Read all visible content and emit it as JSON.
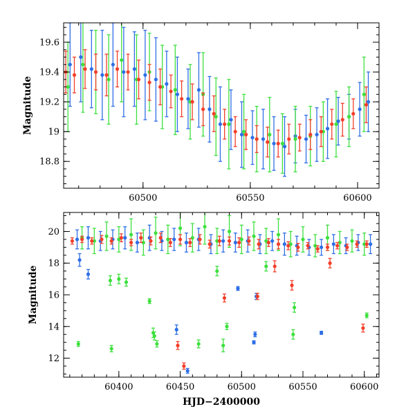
{
  "chart_data": [
    {
      "type": "scatter",
      "panel": "top",
      "ylabel": "Magnitude",
      "xlim": [
        60463,
        60610
      ],
      "ylim": [
        19.73,
        18.62
      ],
      "y_inverted": true,
      "x_ticks": [
        60500,
        60550,
        60600
      ],
      "x_tick_labels": [
        "60500",
        "60550",
        "60600"
      ],
      "y_ticks": [
        18.8,
        19.0,
        19.2,
        19.4,
        19.6
      ],
      "y_tick_labels": [
        "18.8",
        "19",
        "19.2",
        "19.4",
        "19.6"
      ],
      "grid": false,
      "legend": "none",
      "series": [
        {
          "color": "#2e6ee6",
          "x": [
            60466,
            60471,
            60476,
            60481,
            60486,
            60491,
            60496,
            60501,
            60506,
            60511,
            60516,
            60521,
            60526,
            60531,
            60536,
            60541,
            60546,
            60551,
            60556,
            60561,
            60566,
            60571,
            60576,
            60581,
            60586,
            60591,
            60596,
            60601,
            60605
          ],
          "y": [
            19.45,
            19.5,
            19.42,
            19.38,
            19.45,
            19.4,
            19.42,
            19.38,
            19.35,
            19.32,
            19.25,
            19.22,
            19.28,
            19.15,
            19.05,
            19.08,
            18.98,
            18.96,
            18.95,
            18.92,
            18.9,
            18.97,
            18.95,
            18.98,
            19.02,
            19.07,
            19.1,
            19.15,
            19.2
          ],
          "err": [
            0.28,
            0.3,
            0.26,
            0.3,
            0.28,
            0.3,
            0.25,
            0.3,
            0.28,
            0.22,
            0.25,
            0.2,
            0.25,
            0.22,
            0.25,
            0.2,
            0.22,
            0.18,
            0.2,
            0.18,
            0.2,
            0.18,
            0.16,
            0.18,
            0.2,
            0.16,
            0.15,
            0.18,
            0.2
          ]
        },
        {
          "color": "#3ee03e",
          "x": [
            60465,
            60472,
            60478,
            60484,
            60490,
            60497,
            60503,
            60509,
            60515,
            60522,
            60528,
            60534,
            60540,
            60547,
            60553,
            60559,
            60565,
            60571,
            60578,
            60584,
            60590,
            60596,
            60603
          ],
          "y": [
            19.3,
            19.45,
            19.4,
            19.35,
            19.48,
            19.35,
            19.4,
            19.3,
            19.28,
            19.2,
            19.25,
            19.1,
            19.05,
            19.0,
            18.95,
            18.98,
            18.92,
            18.95,
            18.97,
            19.0,
            19.05,
            19.1,
            19.25
          ],
          "err": [
            0.3,
            0.32,
            0.28,
            0.3,
            0.28,
            0.3,
            0.26,
            0.28,
            0.3,
            0.25,
            0.28,
            0.26,
            0.3,
            0.25,
            0.22,
            0.25,
            0.2,
            0.22,
            0.2,
            0.2,
            0.22,
            0.2,
            0.25
          ]
        },
        {
          "color": "#f23f2a",
          "x": [
            60464,
            60468,
            60473,
            60478,
            60483,
            60488,
            60493,
            60498,
            60503,
            60508,
            60513,
            60518,
            60523,
            60528,
            60533,
            60538,
            60543,
            60548,
            60553,
            60558,
            60563,
            60568,
            60573,
            60578,
            60583,
            60588,
            60593,
            60598,
            60604
          ],
          "y": [
            19.4,
            19.38,
            19.42,
            19.4,
            19.38,
            19.42,
            19.4,
            19.35,
            19.33,
            19.3,
            19.27,
            19.22,
            19.2,
            19.15,
            19.12,
            19.05,
            19.0,
            18.98,
            18.95,
            18.93,
            18.92,
            18.95,
            18.96,
            18.98,
            19.0,
            19.05,
            19.08,
            19.12,
            19.18
          ],
          "err": [
            0.14,
            0.12,
            0.13,
            0.12,
            0.14,
            0.12,
            0.12,
            0.13,
            0.12,
            0.12,
            0.11,
            0.12,
            0.12,
            0.11,
            0.12,
            0.1,
            0.1,
            0.1,
            0.09,
            0.1,
            0.09,
            0.1,
            0.09,
            0.1,
            0.1,
            0.1,
            0.11,
            0.1,
            0.12
          ]
        }
      ]
    },
    {
      "type": "scatter",
      "panel": "bottom",
      "xlabel": "HJD−2400000",
      "ylabel": "Magnitude",
      "xlim": [
        60355,
        60612
      ],
      "ylim": [
        21.2,
        10.8
      ],
      "y_inverted": true,
      "x_ticks": [
        60400,
        60450,
        60500,
        60550,
        60600
      ],
      "x_tick_labels": [
        "60400",
        "60450",
        "60500",
        "60550",
        "60600"
      ],
      "y_ticks": [
        12,
        14,
        16,
        18,
        20
      ],
      "y_tick_labels": [
        "12",
        "14",
        "16",
        "18",
        "20"
      ],
      "grid": false,
      "legend": "none",
      "series": [
        {
          "color": "#2e6ee6",
          "x": [
            60366,
            60375,
            60385,
            60395,
            60405,
            60415,
            60425,
            60435,
            60445,
            60455,
            60465,
            60475,
            60485,
            60495,
            60505,
            60515,
            60525,
            60535,
            60545,
            60555,
            60565,
            60575,
            60585,
            60595,
            60605,
            60456,
            60447,
            60510,
            60511,
            60497,
            60565,
            60368,
            60375,
            60512
          ],
          "y": [
            19.5,
            19.6,
            19.4,
            19.5,
            19.6,
            19.3,
            19.6,
            19.4,
            19.5,
            19.3,
            19.5,
            19.2,
            19.4,
            19.3,
            19.4,
            19.2,
            19.4,
            19.2,
            19.1,
            19.0,
            19.0,
            19.2,
            19.1,
            19.3,
            19.2,
            11.2,
            13.8,
            13.0,
            13.5,
            16.4,
            13.6,
            18.2,
            17.3,
            15.9
          ],
          "err": [
            0.6,
            0.7,
            0.6,
            0.6,
            0.7,
            0.6,
            0.8,
            0.6,
            0.7,
            0.6,
            0.7,
            0.6,
            0.7,
            0.6,
            0.7,
            0.6,
            0.6,
            0.7,
            0.6,
            0.5,
            0.5,
            0.6,
            0.5,
            0.5,
            0.6,
            0.15,
            0.3,
            0.1,
            0.15,
            0.12,
            0.1,
            0.4,
            0.3,
            0.2
          ]
        },
        {
          "color": "#3ee03e",
          "x": [
            60370,
            60380,
            60390,
            60400,
            60410,
            60420,
            60430,
            60440,
            60450,
            60460,
            60470,
            60480,
            60490,
            60500,
            60510,
            60520,
            60530,
            60540,
            60550,
            60560,
            60570,
            60580,
            60590,
            60600,
            60367,
            60394,
            60428,
            60431,
            60429,
            60465,
            60485,
            60488,
            60542,
            60543,
            60602,
            60425,
            60393,
            60400,
            60406,
            60480,
            60520
          ],
          "y": [
            19.6,
            19.4,
            19.7,
            19.5,
            19.8,
            19.3,
            19.9,
            19.5,
            20.2,
            19.6,
            20.3,
            19.4,
            20.0,
            19.5,
            19.7,
            19.4,
            19.8,
            19.2,
            19.5,
            19.1,
            19.6,
            19.3,
            19.4,
            19.2,
            12.9,
            12.6,
            13.6,
            12.9,
            13.4,
            12.9,
            12.8,
            14.0,
            13.5,
            15.2,
            14.7,
            15.6,
            16.9,
            17.0,
            16.8,
            17.5,
            17.8
          ],
          "err": [
            0.7,
            0.8,
            0.9,
            0.8,
            1.0,
            0.8,
            1.0,
            0.9,
            1.1,
            0.9,
            1.1,
            0.8,
            1.0,
            0.9,
            0.9,
            0.8,
            1.0,
            0.8,
            0.8,
            0.7,
            0.8,
            0.7,
            0.7,
            0.7,
            0.15,
            0.2,
            0.3,
            0.2,
            0.25,
            0.25,
            0.4,
            0.2,
            0.3,
            0.3,
            0.15,
            0.15,
            0.3,
            0.3,
            0.25,
            0.3,
            0.3
          ]
        },
        {
          "color": "#f23f2a",
          "x": [
            60362,
            60370,
            60378,
            60386,
            60394,
            60402,
            60410,
            60418,
            60426,
            60434,
            60442,
            60450,
            60458,
            60466,
            60474,
            60482,
            60490,
            60498,
            60506,
            60514,
            60522,
            60530,
            60538,
            60546,
            60554,
            60562,
            60570,
            60578,
            60586,
            60594,
            60602,
            60448,
            60453,
            60486,
            60513,
            60541,
            60599,
            60527,
            60572
          ],
          "y": [
            19.4,
            19.5,
            19.4,
            19.5,
            19.4,
            19.6,
            19.3,
            19.6,
            19.4,
            19.6,
            19.3,
            19.5,
            19.3,
            19.5,
            19.2,
            19.4,
            19.4,
            19.3,
            19.4,
            19.2,
            19.3,
            19.2,
            19.1,
            19.0,
            19.1,
            18.9,
            19.0,
            19.1,
            19.0,
            19.2,
            19.2,
            12.8,
            11.5,
            15.8,
            15.9,
            16.6,
            13.9,
            17.8,
            18.0
          ],
          "err": [
            0.2,
            0.2,
            0.2,
            0.25,
            0.2,
            0.25,
            0.2,
            0.3,
            0.25,
            0.3,
            0.25,
            0.3,
            0.25,
            0.3,
            0.25,
            0.3,
            0.25,
            0.3,
            0.25,
            0.3,
            0.25,
            0.3,
            0.25,
            0.25,
            0.2,
            0.2,
            0.2,
            0.2,
            0.2,
            0.2,
            0.2,
            0.25,
            0.2,
            0.25,
            0.2,
            0.3,
            0.25,
            0.35,
            0.3
          ]
        }
      ]
    }
  ]
}
